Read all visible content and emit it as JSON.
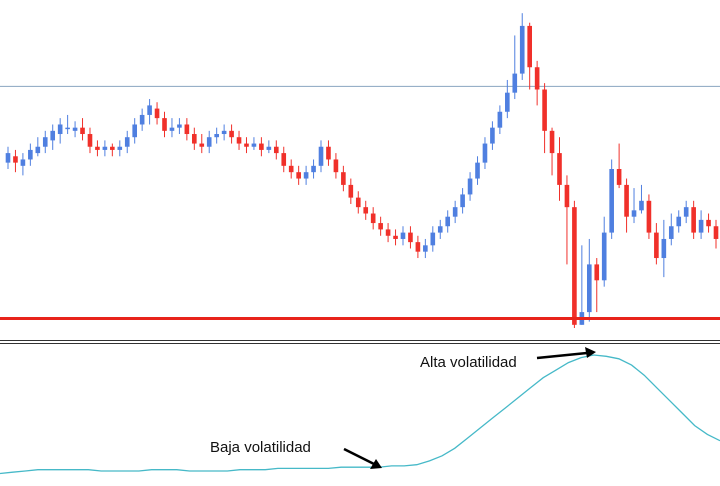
{
  "colors": {
    "bull": "#4f7fe0",
    "bear": "#f0302a",
    "resistance_line": "#8aa4c0",
    "support_line": "#e8231b",
    "volatility_line": "#46b9c8",
    "arrow": "#000000",
    "separator": "#333333"
  },
  "annotations": {
    "high": "Alta volatilidad",
    "low": "Baja volatilidad"
  },
  "chart_data": [
    {
      "type": "candlestick",
      "title": "",
      "xlabel": "",
      "ylabel": "",
      "grid": false,
      "ylim": [
        0,
        100
      ],
      "horizontal_levels": [
        {
          "value": 76.0,
          "role": "resistance"
        },
        {
          "value": 3.0,
          "role": "support"
        }
      ],
      "candles": [
        [
          52,
          55,
          57,
          50
        ],
        [
          54,
          52,
          56,
          49
        ],
        [
          51,
          53,
          55,
          48
        ],
        [
          53,
          56,
          58,
          51
        ],
        [
          55,
          57,
          60,
          54
        ],
        [
          57,
          60,
          62,
          55
        ],
        [
          59,
          62,
          64,
          56
        ],
        [
          61,
          64,
          66,
          58
        ],
        [
          63,
          63,
          67,
          61
        ],
        [
          62,
          63,
          65,
          60
        ],
        [
          63,
          61,
          66,
          59
        ],
        [
          61,
          57,
          63,
          55
        ],
        [
          57,
          56,
          59,
          54
        ],
        [
          56,
          57,
          59,
          54
        ],
        [
          57,
          56,
          58,
          54
        ],
        [
          56,
          57,
          59,
          54
        ],
        [
          57,
          60,
          62,
          55
        ],
        [
          60,
          64,
          66,
          58
        ],
        [
          64,
          67,
          69,
          62
        ],
        [
          67,
          70,
          72,
          64
        ],
        [
          69,
          66,
          71,
          64
        ],
        [
          66,
          62,
          68,
          60
        ],
        [
          62,
          63,
          66,
          60
        ],
        [
          63,
          64,
          66,
          61
        ],
        [
          64,
          61,
          66,
          59
        ],
        [
          61,
          58,
          63,
          56
        ],
        [
          58,
          57,
          61,
          55
        ],
        [
          57,
          60,
          62,
          55
        ],
        [
          60,
          61,
          63,
          58
        ],
        [
          61,
          62,
          64,
          59
        ],
        [
          62,
          60,
          64,
          58
        ],
        [
          60,
          58,
          62,
          56
        ],
        [
          58,
          57,
          60,
          55
        ],
        [
          57,
          58,
          60,
          56
        ],
        [
          58,
          56,
          60,
          54
        ],
        [
          56,
          57,
          59,
          55
        ],
        [
          57,
          55,
          59,
          53
        ],
        [
          55,
          51,
          57,
          49
        ],
        [
          51,
          49,
          53,
          47
        ],
        [
          49,
          47,
          51,
          45
        ],
        [
          47,
          49,
          51,
          45
        ],
        [
          49,
          51,
          53,
          47
        ],
        [
          51,
          57,
          59,
          49
        ],
        [
          57,
          53,
          59,
          51
        ],
        [
          53,
          49,
          55,
          47
        ],
        [
          49,
          45,
          51,
          43
        ],
        [
          45,
          41,
          47,
          39
        ],
        [
          41,
          38,
          43,
          36
        ],
        [
          38,
          36,
          40,
          34
        ],
        [
          36,
          33,
          38,
          31
        ],
        [
          33,
          31,
          35,
          29
        ],
        [
          31,
          29,
          33,
          27
        ],
        [
          29,
          28,
          31,
          26
        ],
        [
          28,
          30,
          32,
          26
        ],
        [
          30,
          27,
          32,
          25
        ],
        [
          27,
          24,
          29,
          22
        ],
        [
          24,
          26,
          28,
          22
        ],
        [
          26,
          30,
          32,
          24
        ],
        [
          30,
          32,
          34,
          28
        ],
        [
          32,
          35,
          37,
          30
        ],
        [
          35,
          38,
          40,
          33
        ],
        [
          38,
          42,
          44,
          36
        ],
        [
          42,
          47,
          49,
          40
        ],
        [
          47,
          52,
          54,
          45
        ],
        [
          52,
          58,
          60,
          50
        ],
        [
          58,
          63,
          65,
          56
        ],
        [
          63,
          68,
          70,
          61
        ],
        [
          68,
          74,
          78,
          66
        ],
        [
          74,
          80,
          92,
          72
        ],
        [
          80,
          95,
          99,
          78
        ],
        [
          95,
          82,
          96,
          75
        ],
        [
          82,
          75,
          84,
          70
        ],
        [
          75,
          62,
          77,
          55
        ],
        [
          62,
          55,
          63,
          48
        ],
        [
          55,
          45,
          60,
          40
        ],
        [
          45,
          38,
          48,
          20
        ],
        [
          38,
          1,
          40,
          0
        ],
        [
          1,
          5,
          26,
          1
        ],
        [
          5,
          20,
          28,
          2
        ],
        [
          20,
          15,
          22,
          5
        ],
        [
          15,
          30,
          35,
          13
        ],
        [
          30,
          50,
          53,
          28
        ],
        [
          50,
          45,
          58,
          44
        ],
        [
          45,
          35,
          47,
          30
        ],
        [
          35,
          37,
          44,
          33
        ],
        [
          37,
          40,
          45,
          36
        ],
        [
          40,
          30,
          42,
          28
        ],
        [
          30,
          22,
          33,
          20
        ],
        [
          22,
          28,
          34,
          16
        ],
        [
          28,
          32,
          36,
          26
        ],
        [
          32,
          35,
          37,
          30
        ],
        [
          35,
          38,
          40,
          33
        ],
        [
          38,
          30,
          40,
          28
        ],
        [
          30,
          34,
          37,
          28
        ],
        [
          34,
          32,
          36,
          30
        ],
        [
          32,
          28,
          34,
          25
        ]
      ]
    },
    {
      "type": "line",
      "title": "",
      "xlabel": "",
      "ylabel": "",
      "grid": false,
      "ylim": [
        0,
        100
      ],
      "series": [
        {
          "values": [
            2,
            3,
            4,
            5,
            5,
            5,
            5,
            5,
            4,
            4,
            4,
            4,
            5,
            5,
            5,
            4,
            4,
            4,
            4,
            5,
            5,
            5,
            6,
            6,
            6,
            6,
            6,
            7,
            7,
            7,
            7,
            8,
            8,
            9,
            12,
            16,
            22,
            30,
            38,
            46,
            54,
            62,
            70,
            78,
            84,
            90,
            94,
            96,
            95,
            93,
            88,
            80,
            70,
            60,
            50,
            40,
            33,
            28
          ]
        }
      ]
    }
  ]
}
